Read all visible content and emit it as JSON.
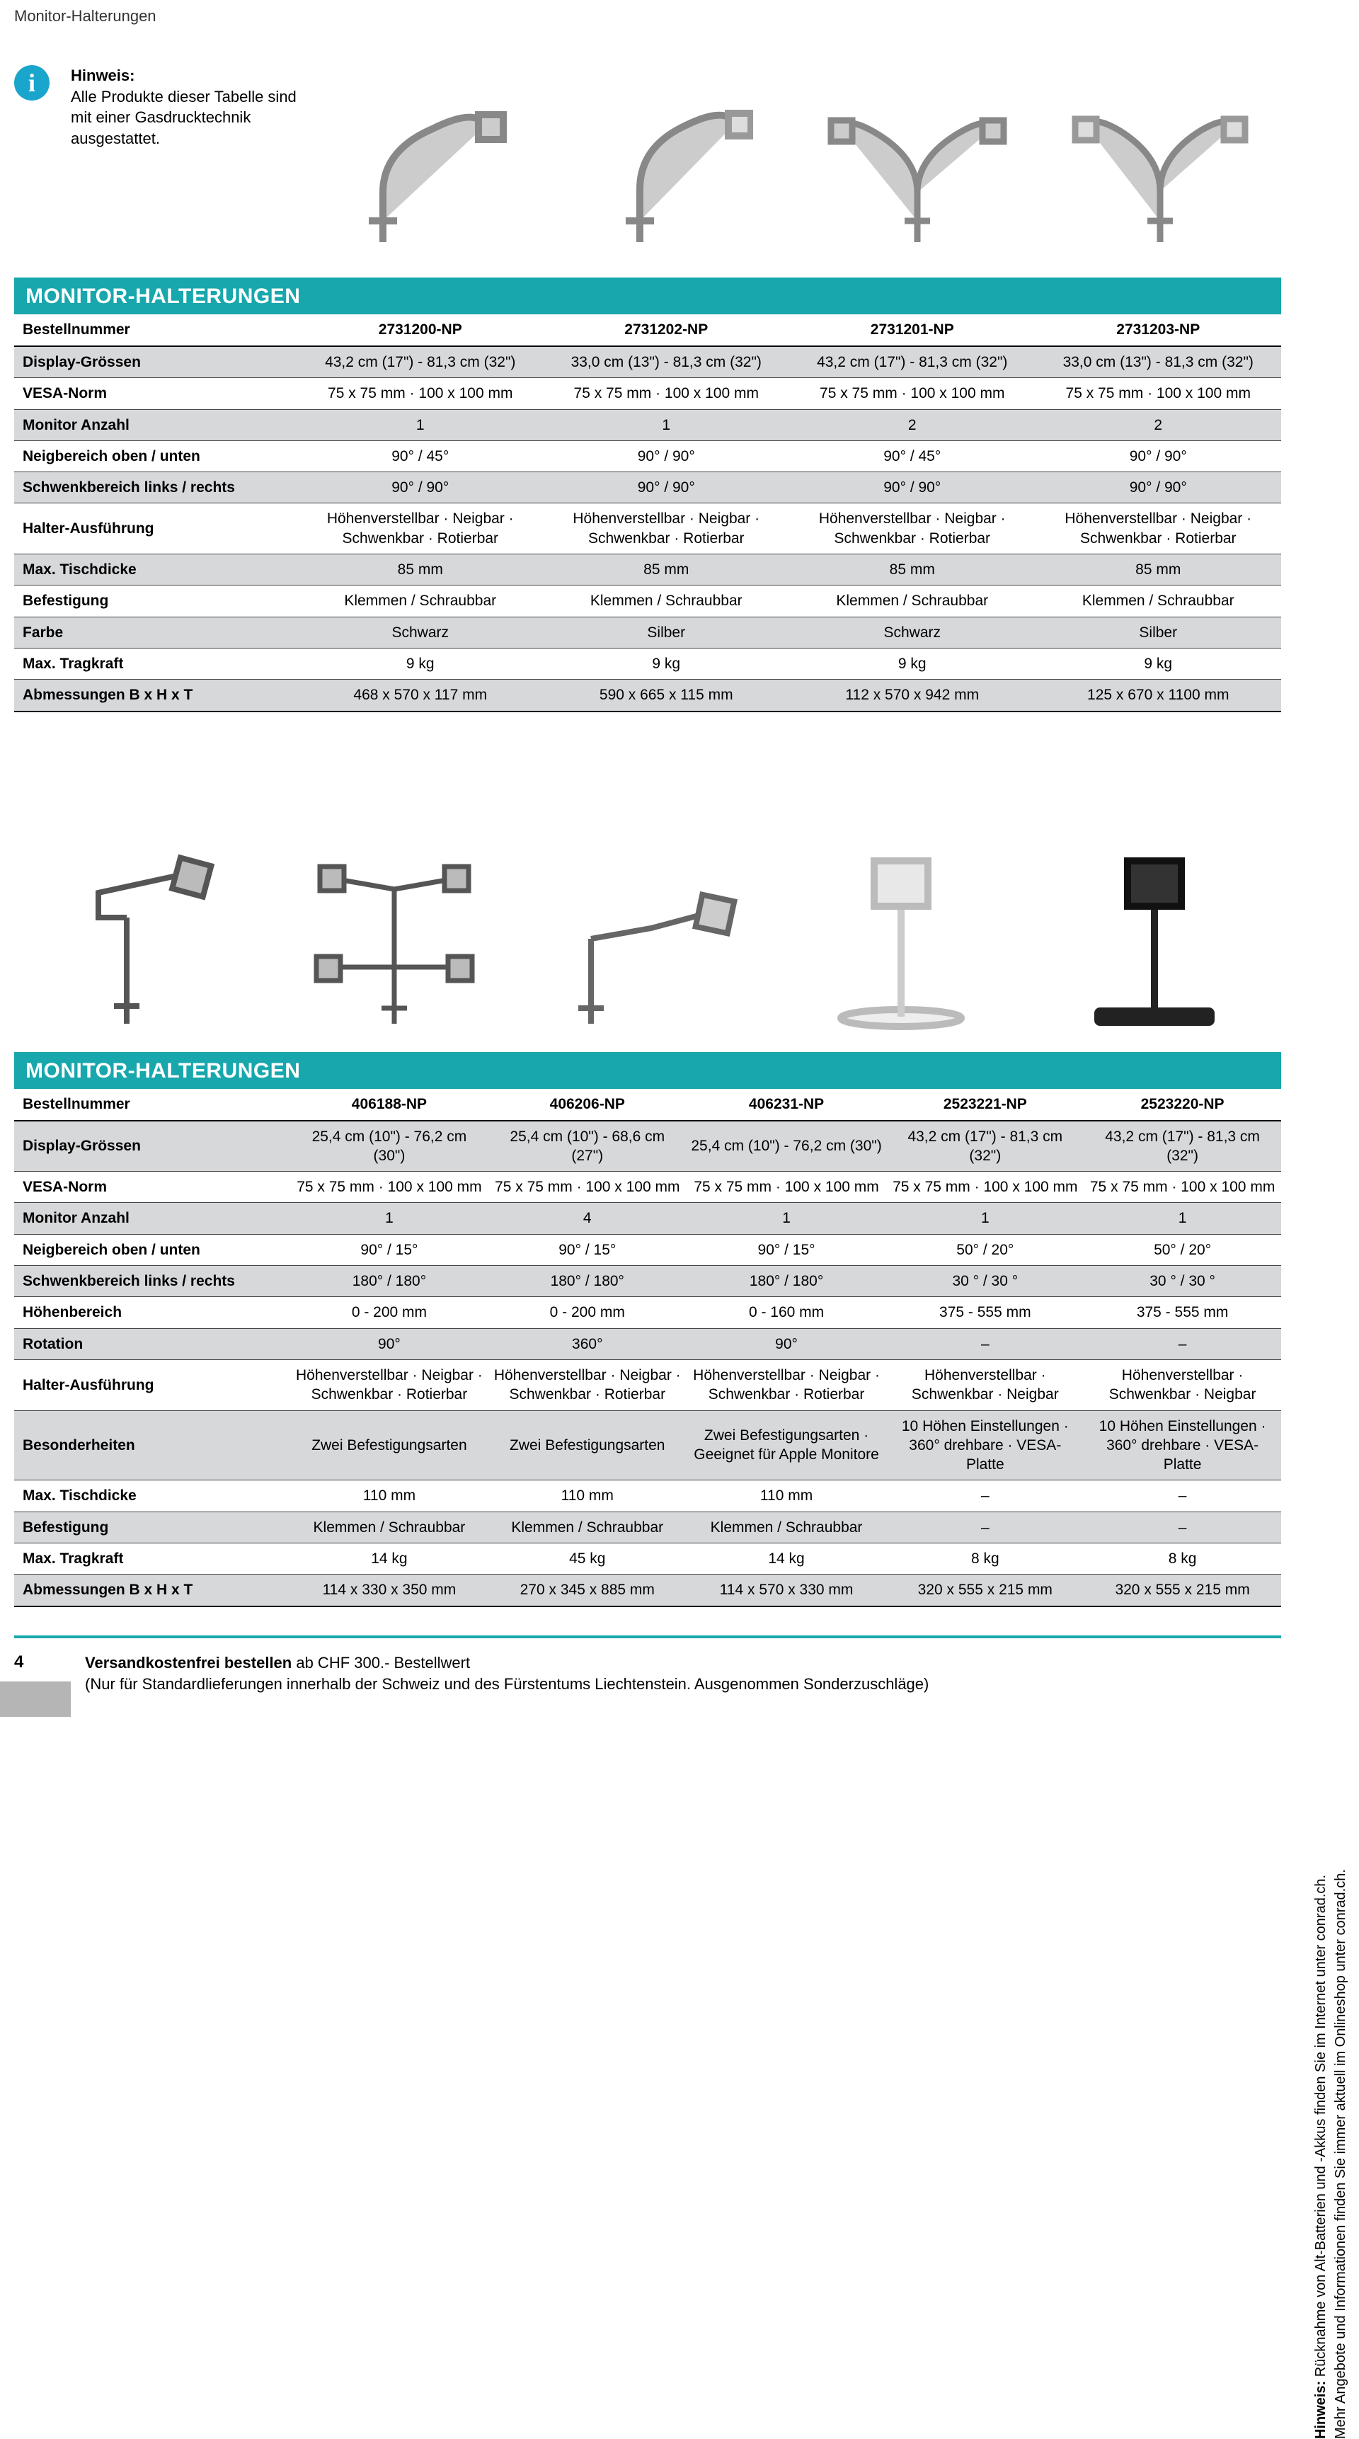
{
  "colors": {
    "accent": "#17a7ad",
    "info_icon": "#1aa5cc",
    "alt_row": "#d7d8da",
    "text": "#000000",
    "bg": "#ffffff",
    "grey_block": "#b5b5b5"
  },
  "header_small": "Monitor-Halterungen",
  "info_title": "Hinweis:",
  "info_body": "Alle Produkte dieser Tabelle sind mit einer Gasdrucktechnik ausgestattet.",
  "section_title": "MONITOR-HALTERUNGEN",
  "table1": {
    "header_label": "Bestellnummer",
    "columns": [
      "2731200-NP",
      "2731202-NP",
      "2731201-NP",
      "2731203-NP"
    ],
    "rows": [
      {
        "label": "Display-Grössen",
        "alt": true,
        "cells": [
          "43,2 cm (17\") - 81,3 cm (32\")",
          "33,0 cm (13\") - 81,3 cm (32\")",
          "43,2 cm (17\") - 81,3 cm (32\")",
          "33,0 cm (13\") - 81,3 cm (32\")"
        ]
      },
      {
        "label": "VESA-Norm",
        "alt": false,
        "cells": [
          "75 x 75 mm · 100 x 100 mm",
          "75 x 75 mm · 100 x 100 mm",
          "75 x 75 mm · 100 x 100 mm",
          "75 x 75 mm · 100 x 100 mm"
        ]
      },
      {
        "label": "Monitor Anzahl",
        "alt": true,
        "cells": [
          "1",
          "1",
          "2",
          "2"
        ]
      },
      {
        "label": "Neigbereich oben / unten",
        "alt": false,
        "cells": [
          "90° / 45°",
          "90° / 90°",
          "90° / 45°",
          "90° / 90°"
        ]
      },
      {
        "label": "Schwenkbereich links / rechts",
        "alt": true,
        "cells": [
          "90° / 90°",
          "90° / 90°",
          "90° / 90°",
          "90° / 90°"
        ]
      },
      {
        "label": "Halter-Ausführung",
        "alt": false,
        "cells": [
          "Höhenverstellbar · Neigbar · Schwenkbar · Rotierbar",
          "Höhenverstellbar · Neigbar · Schwenkbar · Rotierbar",
          "Höhenverstellbar · Neigbar · Schwenkbar · Rotierbar",
          "Höhenverstellbar · Neigbar · Schwenkbar · Rotierbar"
        ]
      },
      {
        "label": "Max. Tischdicke",
        "alt": true,
        "cells": [
          "85 mm",
          "85 mm",
          "85 mm",
          "85 mm"
        ]
      },
      {
        "label": "Befestigung",
        "alt": false,
        "cells": [
          "Klemmen / Schraubbar",
          "Klemmen / Schraubbar",
          "Klemmen / Schraubbar",
          "Klemmen / Schraubbar"
        ]
      },
      {
        "label": "Farbe",
        "alt": true,
        "cells": [
          "Schwarz",
          "Silber",
          "Schwarz",
          "Silber"
        ]
      },
      {
        "label": "Max. Tragkraft",
        "alt": false,
        "cells": [
          "9 kg",
          "9 kg",
          "9 kg",
          "9 kg"
        ]
      },
      {
        "label": "Abmessungen B x H x T",
        "alt": true,
        "cells": [
          "468 x 570 x 117 mm",
          "590 x 665 x 115 mm",
          "112 x 570 x 942 mm",
          "125 x 670 x 1100 mm"
        ]
      }
    ]
  },
  "table2": {
    "header_label": "Bestellnummer",
    "columns": [
      "406188-NP",
      "406206-NP",
      "406231-NP",
      "2523221-NP",
      "2523220-NP"
    ],
    "rows": [
      {
        "label": "Display-Grössen",
        "alt": true,
        "cells": [
          "25,4 cm (10\") - 76,2 cm (30\")",
          "25,4 cm (10\") - 68,6 cm (27\")",
          "25,4 cm (10\") - 76,2 cm (30\")",
          "43,2 cm (17\") - 81,3 cm (32\")",
          "43,2 cm (17\") - 81,3 cm (32\")"
        ]
      },
      {
        "label": "VESA-Norm",
        "alt": false,
        "cells": [
          "75 x 75 mm · 100 x 100 mm",
          "75 x 75 mm · 100 x 100 mm",
          "75 x 75 mm · 100 x 100 mm",
          "75 x 75 mm · 100 x 100 mm",
          "75 x 75 mm · 100 x 100 mm"
        ]
      },
      {
        "label": "Monitor Anzahl",
        "alt": true,
        "cells": [
          "1",
          "4",
          "1",
          "1",
          "1"
        ]
      },
      {
        "label": "Neigbereich oben / unten",
        "alt": false,
        "cells": [
          "90° / 15°",
          "90° / 15°",
          "90° / 15°",
          "50° / 20°",
          "50° / 20°"
        ]
      },
      {
        "label": "Schwenkbereich links / rechts",
        "alt": true,
        "cells": [
          "180° / 180°",
          "180° / 180°",
          "180° / 180°",
          "30 ° / 30 °",
          "30 ° / 30 °"
        ]
      },
      {
        "label": "Höhenbereich",
        "alt": false,
        "cells": [
          "0 - 200 mm",
          "0 - 200 mm",
          "0 - 160 mm",
          "375 - 555 mm",
          "375 - 555 mm"
        ]
      },
      {
        "label": "Rotation",
        "alt": true,
        "cells": [
          "90°",
          "360°",
          "90°",
          "–",
          "–"
        ]
      },
      {
        "label": "Halter-Ausführung",
        "alt": false,
        "cells": [
          "Höhenverstellbar · Neigbar · Schwenkbar · Rotierbar",
          "Höhenverstellbar · Neigbar · Schwenkbar · Rotierbar",
          "Höhenverstellbar · Neigbar · Schwenkbar · Rotierbar",
          "Höhenverstellbar · Schwenkbar · Neigbar",
          "Höhenverstellbar · Schwenkbar · Neigbar"
        ]
      },
      {
        "label": "Besonderheiten",
        "alt": true,
        "cells": [
          "Zwei Befestigungsarten",
          "Zwei Befestigungsarten",
          "Zwei Befestigungsarten · Geeignet für Apple Monitore",
          "10 Höhen Einstellungen · 360° drehbare · VESA-Platte",
          "10 Höhen Einstellungen · 360° drehbare · VESA-Platte"
        ]
      },
      {
        "label": "Max. Tischdicke",
        "alt": false,
        "cells": [
          "110 mm",
          "110 mm",
          "110 mm",
          "–",
          "–"
        ]
      },
      {
        "label": "Befestigung",
        "alt": true,
        "cells": [
          "Klemmen / Schraubbar",
          "Klemmen / Schraubbar",
          "Klemmen / Schraubbar",
          "–",
          "–"
        ]
      },
      {
        "label": "Max. Tragkraft",
        "alt": false,
        "cells": [
          "14 kg",
          "45 kg",
          "14 kg",
          "8 kg",
          "8 kg"
        ]
      },
      {
        "label": "Abmessungen B x H x T",
        "alt": true,
        "cells": [
          "114 x 330 x 350 mm",
          "270 x 345 x 885 mm",
          "114 x 570 x 330 mm",
          "320 x 555 x 215 mm",
          "320 x 555 x 215 mm"
        ]
      }
    ]
  },
  "footer": {
    "page_number": "4",
    "line1_bold": "Versandkostenfrei bestellen",
    "line1_rest": " ab CHF 300.- Bestellwert",
    "line2": "(Nur für Standardlieferungen innerhalb der Schweiz und des Fürstentums Liechtenstein. Ausgenommen Sonderzuschläge)"
  },
  "side": {
    "line1_bold": "Hinweis:",
    "line1_rest": " Rücknahme von Alt-Batterien und -Akkus finden Sie im Internet unter conrad.ch.",
    "line2": "Mehr Angebote und Informationen finden Sie immer aktuell im Onlineshop unter conrad.ch."
  }
}
